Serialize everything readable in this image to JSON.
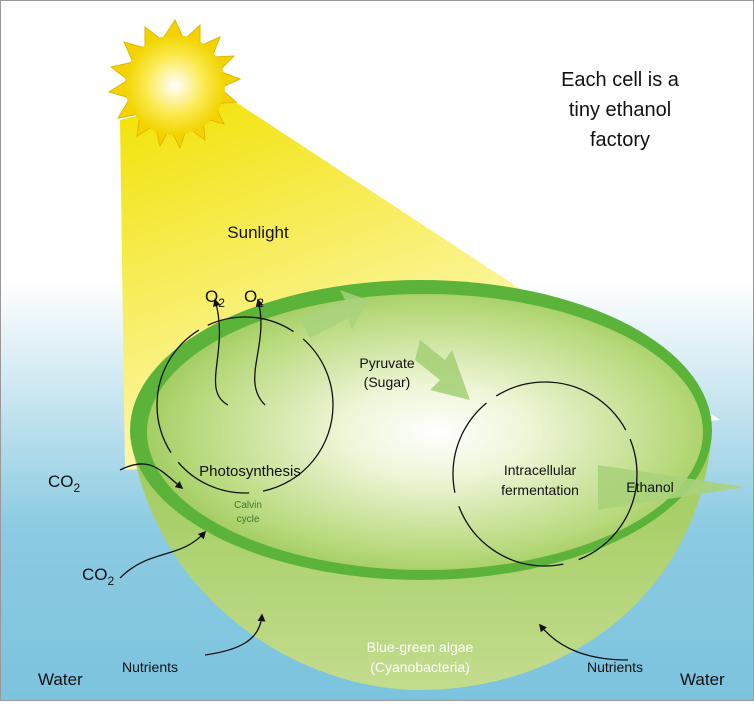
{
  "title_lines": [
    "Each cell is a",
    "tiny ethanol",
    "factory"
  ],
  "sunlight": "Sunlight",
  "oxygen": [
    {
      "symbol": "O",
      "subscript": "2"
    },
    {
      "symbol": "O",
      "subscript": "2"
    }
  ],
  "carbon_dioxide": [
    {
      "symbol": "CO",
      "subscript": "2"
    },
    {
      "symbol": "CO",
      "subscript": "2"
    }
  ],
  "pyruvate": [
    "Pyruvate",
    "(Sugar)"
  ],
  "photosynthesis": "Photosynthesis",
  "calvin_cycle": [
    "Calvin",
    "cycle"
  ],
  "fermentation": [
    "Intracellular",
    "fermentation"
  ],
  "ethanol": "Ethanol",
  "algae": [
    "Blue-green algae",
    "(Cyanobacteria)"
  ],
  "nutrients": [
    "Nutrients",
    "Nutrients"
  ],
  "water": [
    "Water",
    "Water"
  ]
}
